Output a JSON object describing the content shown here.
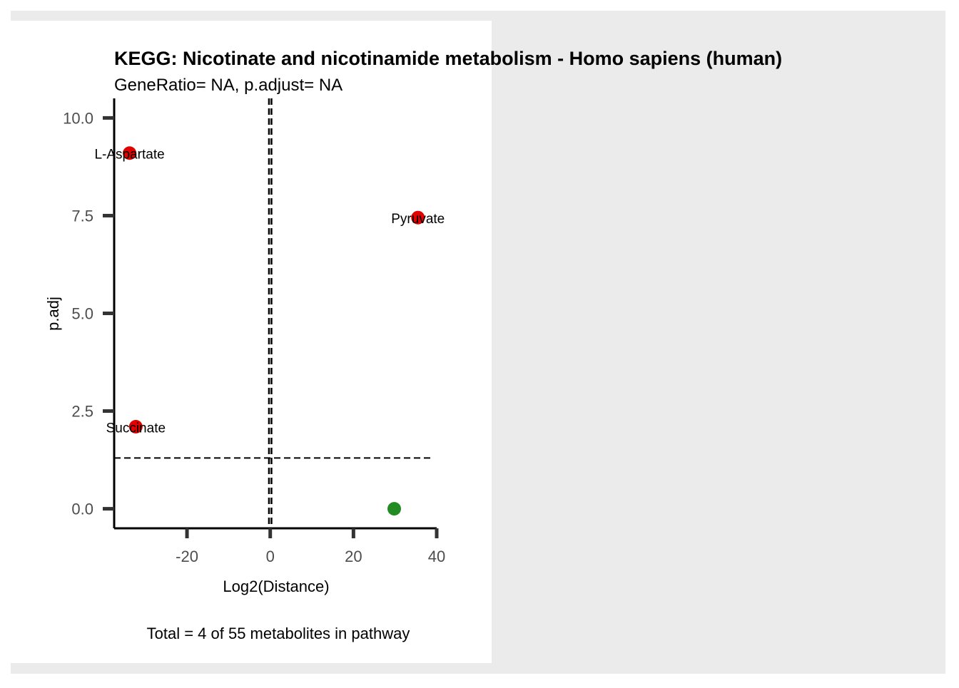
{
  "chart_data": {
    "type": "scatter",
    "title": "KEGG: Nicotinate and nicotinamide metabolism - Homo sapiens (human)",
    "subtitle": "GeneRatio= NA, p.adjust= NA",
    "xlabel": "Log2(Distance)",
    "ylabel": "p.adj",
    "caption": "Total = 4 of 55 metabolites in pathway",
    "xlim": [
      -37.5,
      40
    ],
    "ylim": [
      -0.5,
      10.5
    ],
    "xticks": [
      -20,
      0,
      20,
      40
    ],
    "xtick_labels": [
      "-20",
      "0",
      "20",
      "40"
    ],
    "yticks": [
      0,
      2.5,
      5,
      7.5,
      10
    ],
    "ytick_labels": [
      "0.0",
      "2.5",
      "5.0",
      "7.5",
      "10.0"
    ],
    "hline_y": 1.3,
    "vline_x": [
      -0.3,
      0.3
    ],
    "grid": false,
    "colors": {
      "significant": "#e00000",
      "not_significant": "#228b22",
      "panel_background": "#ffffff",
      "outer_background": "#ebebeb"
    },
    "points": [
      {
        "label": "L-Aspartate",
        "x": -33.8,
        "y": 9.1,
        "group": "significant"
      },
      {
        "label": "Pyruvate",
        "x": 35.5,
        "y": 7.45,
        "group": "significant"
      },
      {
        "label": "Succinate",
        "x": -32.3,
        "y": 2.1,
        "group": "significant"
      },
      {
        "label": "",
        "x": 29.8,
        "y": 0.0,
        "group": "not_significant"
      }
    ]
  }
}
